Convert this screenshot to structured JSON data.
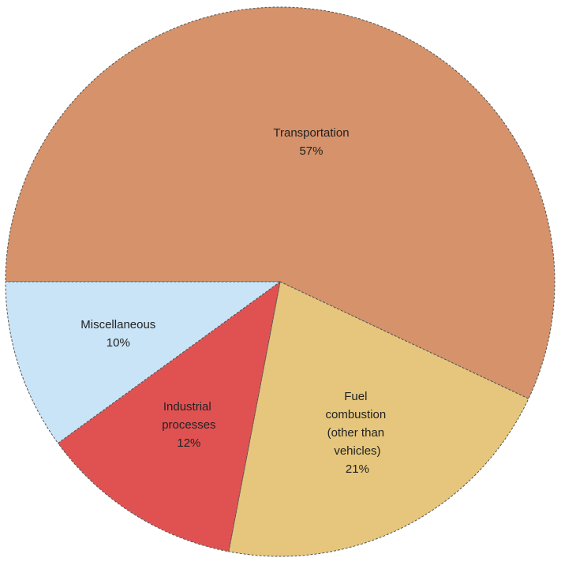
{
  "chart_data": {
    "type": "pie",
    "categories": [
      "Transportation",
      "Fuel combustion (other than vehicles)",
      "Industrial processes",
      "Miscellaneous"
    ],
    "values": [
      57,
      21,
      12,
      10
    ],
    "value_labels": [
      "57%",
      "21%",
      "12%",
      "10%"
    ],
    "colors": [
      "#d6926a",
      "#e6c67c",
      "#e05252",
      "#c9e4f6"
    ],
    "start_angle": 180,
    "direction": "clockwise"
  }
}
